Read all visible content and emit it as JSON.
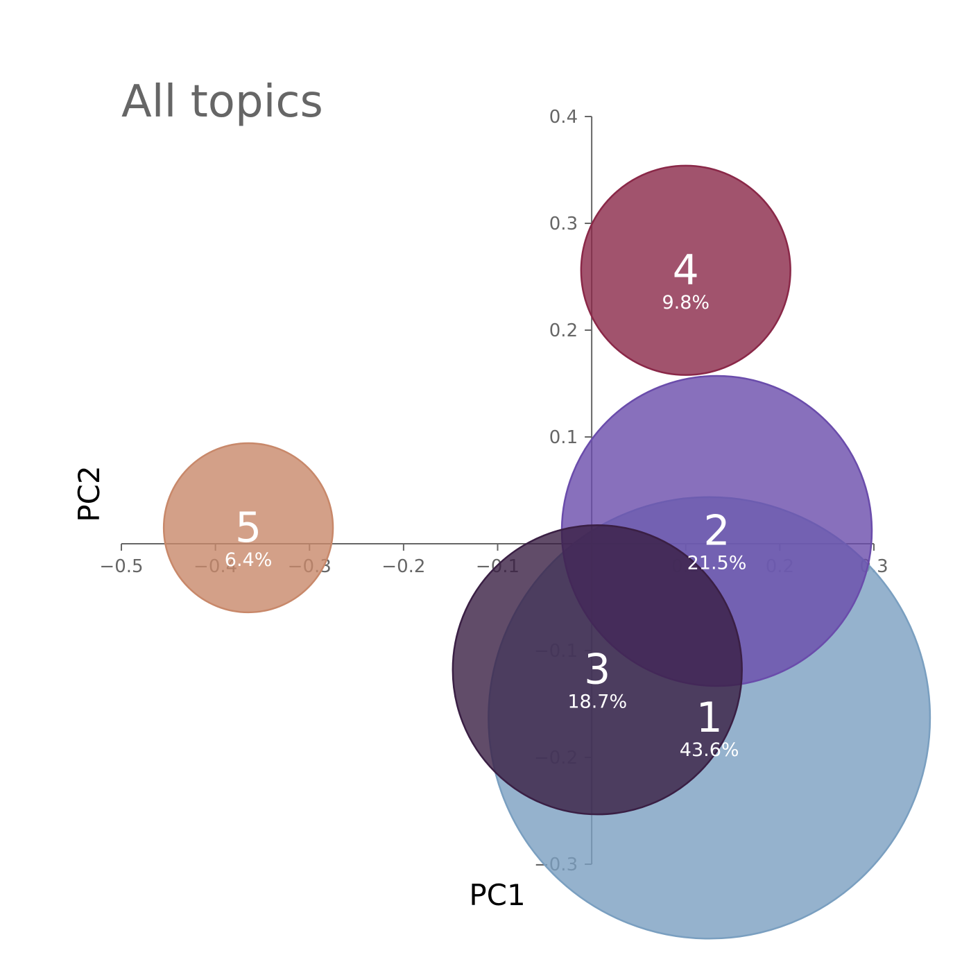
{
  "chart_data": {
    "type": "scatter",
    "title": "All topics",
    "xlabel": "PC1",
    "ylabel": "PC2",
    "xlim": [
      -0.5,
      0.3
    ],
    "ylim": [
      -0.3,
      0.4
    ],
    "x_ticks": [
      "−0.5",
      "−0.4",
      "−0.3",
      "−0.2",
      "−0.1",
      "0.1",
      "0.2",
      "0.3"
    ],
    "x_tick_values": [
      -0.5,
      -0.4,
      -0.3,
      -0.2,
      -0.1,
      0.1,
      0.2,
      0.3
    ],
    "y_ticks": [
      "−0.3",
      "−0.2",
      "−0.1",
      "0.1",
      "0.2",
      "0.3",
      "0.4"
    ],
    "y_tick_values": [
      -0.3,
      -0.2,
      -0.1,
      0.1,
      0.2,
      0.3,
      0.4
    ],
    "grid": false,
    "points": [
      {
        "label": "1",
        "percent": "43.6%",
        "share": 43.6,
        "x": 0.125,
        "y": -0.163,
        "color": "#7a9fc0"
      },
      {
        "label": "2",
        "percent": "21.5%",
        "share": 21.5,
        "x": 0.133,
        "y": 0.012,
        "color": "#6a4cab"
      },
      {
        "label": "3",
        "percent": "18.7%",
        "share": 18.7,
        "x": 0.006,
        "y": -0.118,
        "color": "#3a1f44"
      },
      {
        "label": "4",
        "percent": "9.8%",
        "share": 9.8,
        "x": 0.1,
        "y": 0.256,
        "color": "#8a2848"
      },
      {
        "label": "5",
        "percent": "6.4%",
        "share": 6.4,
        "x": -0.365,
        "y": 0.015,
        "color": "#c8886a"
      }
    ]
  }
}
